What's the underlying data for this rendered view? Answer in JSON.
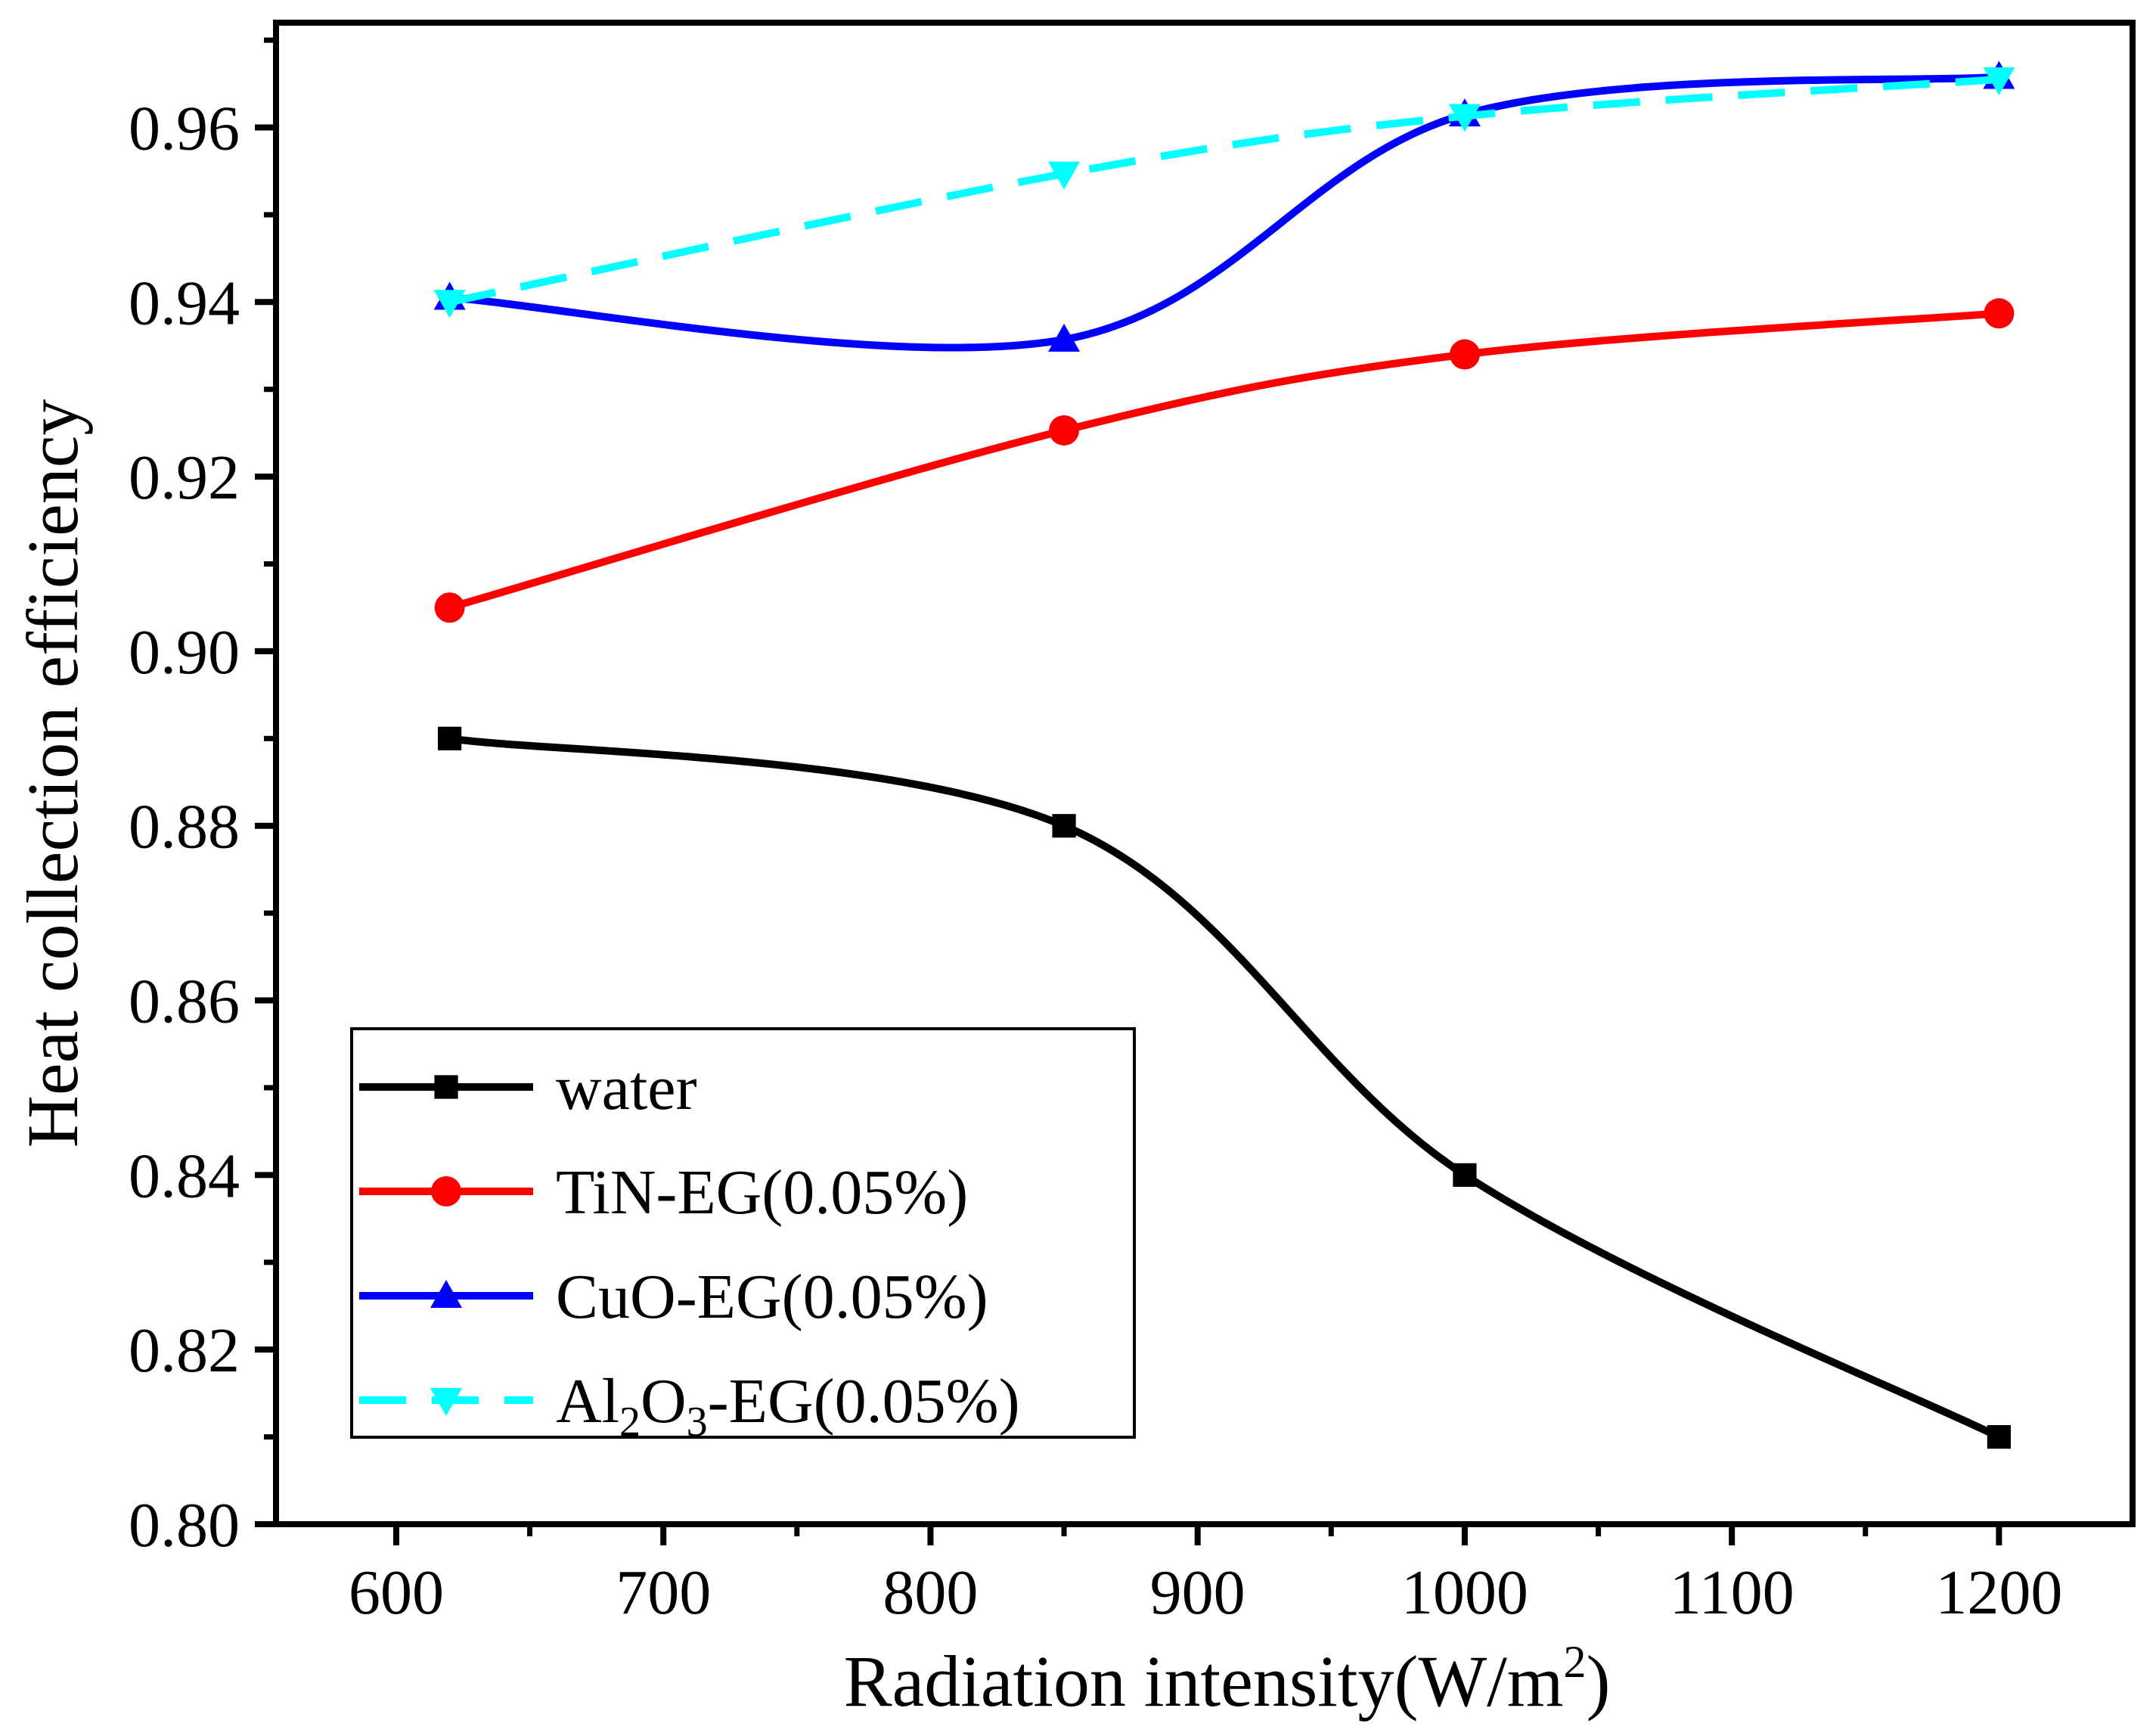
{
  "chart_data": {
    "type": "line",
    "title": "",
    "xlabel": "Radiation intensity(W/m²)",
    "xlabel_parts": {
      "main": "Radiation intensity(W/m",
      "sup": "2",
      "close": ")"
    },
    "ylabel": "Heat collection efficiency",
    "xlim": [
      555,
      1250
    ],
    "ylim": [
      0.8,
      0.972
    ],
    "xticks": [
      "600",
      "700",
      "800",
      "900",
      "1000",
      "1100",
      "1200"
    ],
    "yticks": [
      "0.80",
      "0.82",
      "0.84",
      "0.86",
      "0.88",
      "0.90",
      "0.92",
      "0.94",
      "0.96"
    ],
    "x": [
      620,
      850,
      1000,
      1200
    ],
    "grid": false,
    "legend_position": "bottom-left",
    "series": [
      {
        "name": "water",
        "values": [
          0.89,
          0.88,
          0.84,
          0.81
        ],
        "color": "#000000",
        "marker": "square",
        "dashed": false
      },
      {
        "name": "TiN-EG(0.05%)",
        "values": [
          0.905,
          0.9253,
          0.934,
          0.9387
        ],
        "color": "#ff0000",
        "marker": "circle",
        "dashed": false
      },
      {
        "name": "CuO-EG(0.05%)",
        "values": [
          0.9405,
          0.9357,
          0.9615,
          0.9658
        ],
        "color": "#0000ff",
        "marker": "triangle-up",
        "dashed": false
      },
      {
        "name": "Al₂O₃-EG(0.05%)",
        "name_parts": [
          "Al",
          "2",
          "O",
          "3",
          "-EG(0.05%)"
        ],
        "values": [
          0.94,
          0.9547,
          0.9613,
          0.9655
        ],
        "color": "#00ffff",
        "marker": "triangle-down",
        "dashed": true
      }
    ]
  }
}
